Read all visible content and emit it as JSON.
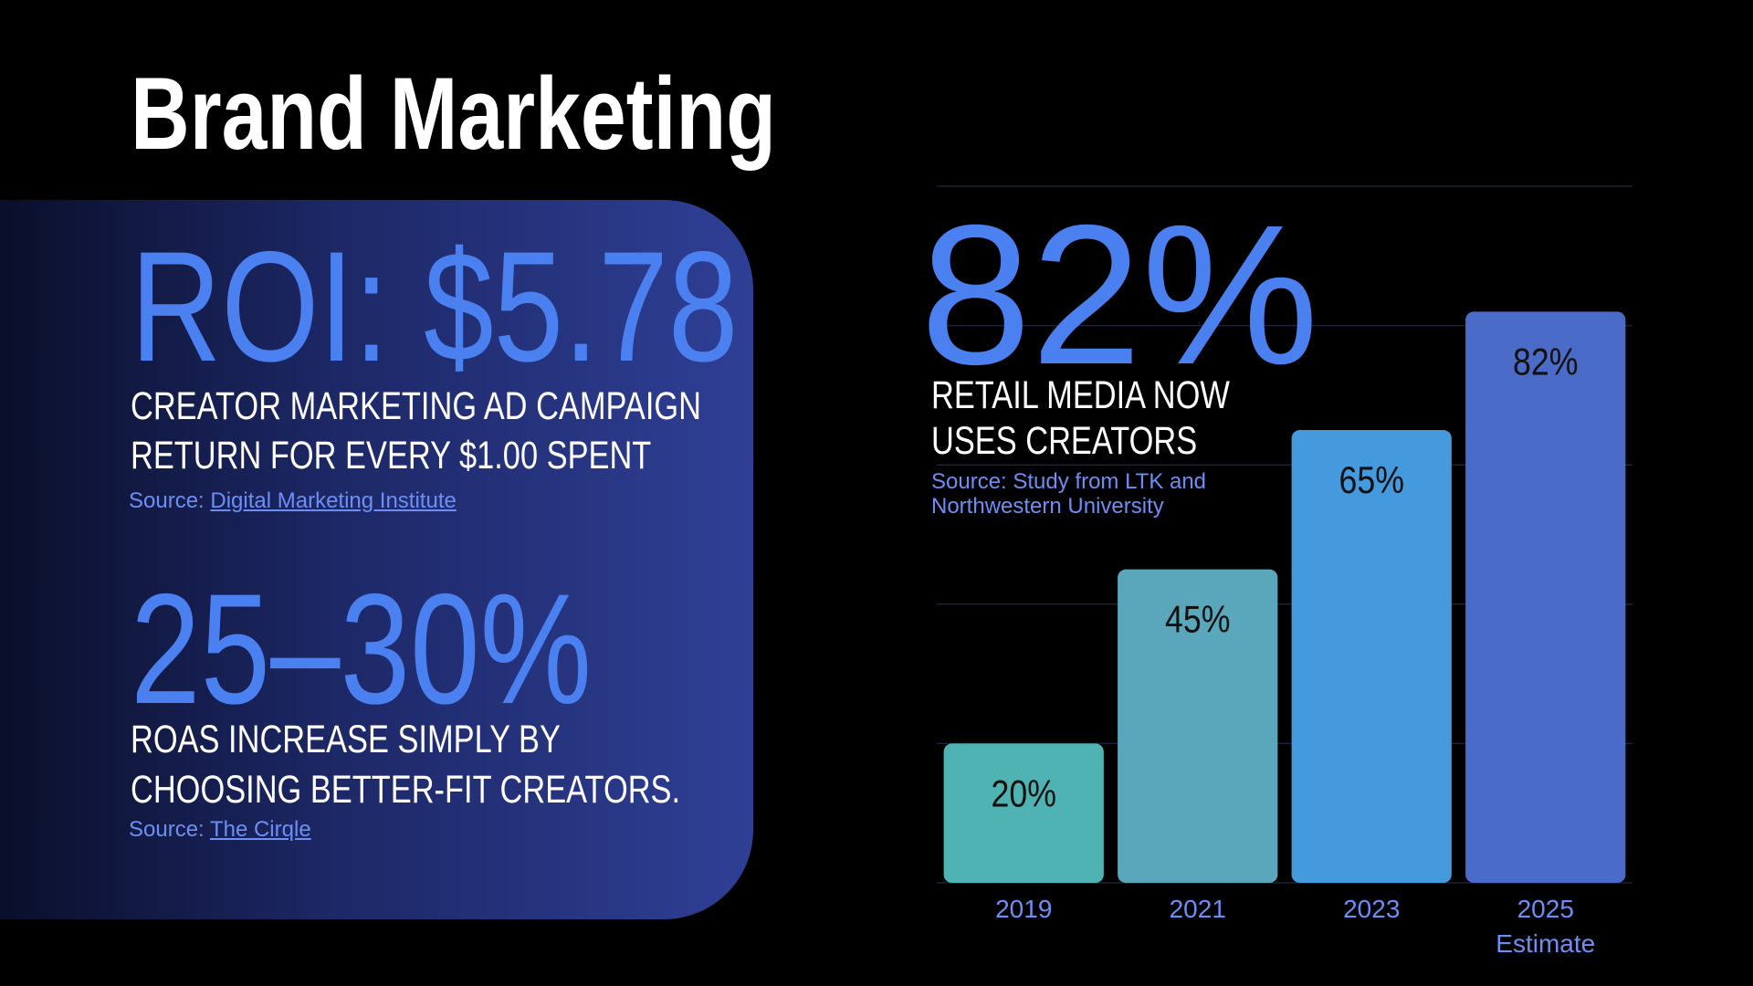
{
  "title": "Brand Marketing",
  "stats": [
    {
      "value": "ROI: $5.78",
      "description": [
        "CREATOR MARKETING AD CAMPAIGN",
        "RETURN FOR EVERY $1.00 SPENT"
      ],
      "source_label": "Source:",
      "source_link": "Digital Marketing Institute"
    },
    {
      "value": "25–30%",
      "description": [
        "ROAS INCREASE SIMPLY BY",
        "CHOOSING BETTER-FIT CREATORS."
      ],
      "source_label": "Source:",
      "source_link": "The Cirqle"
    }
  ],
  "chart_data": {
    "type": "bar",
    "headline": "82%",
    "subtitle": "RETAIL MEDIA NOW USES CREATORS",
    "source": "Source: Study from LTK and Northwestern University",
    "categories": [
      "2019",
      "2021",
      "2023",
      "2025 Estimate"
    ],
    "values": [
      20,
      45,
      65,
      82
    ],
    "value_labels": [
      "20%",
      "45%",
      "65%",
      "82%"
    ],
    "colors": [
      "#4fb3b3",
      "#5aa6ba",
      "#4599dd",
      "#4a6bc7"
    ],
    "ylim": [
      0,
      100
    ],
    "yticks": [
      0,
      20,
      40,
      60,
      80,
      100
    ],
    "grid": true
  }
}
